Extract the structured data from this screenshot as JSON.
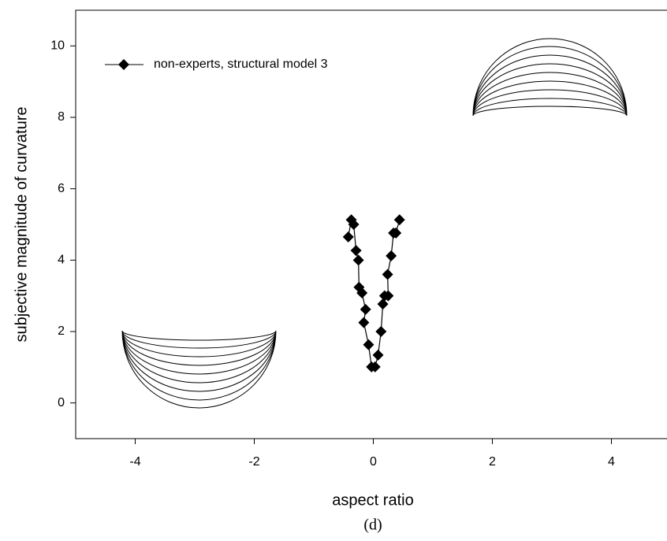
{
  "chart_data": {
    "type": "line",
    "x_label": "aspect ratio",
    "y_label": "subjective magnitude of curvature",
    "caption": "(d)",
    "xlim": [
      -5,
      5
    ],
    "ylim": [
      -1,
      11
    ],
    "xticks": [
      -4,
      -2,
      0,
      2,
      4
    ],
    "yticks": [
      0,
      2,
      4,
      6,
      8,
      10
    ],
    "series": [
      {
        "name": "non-experts, structural model 3",
        "color": "#000000",
        "x": [
          -0.42,
          -0.37,
          -0.33,
          -0.29,
          -0.25,
          -0.24,
          -0.19,
          -0.13,
          -0.16,
          -0.08,
          -0.03,
          0.03,
          0.08,
          0.13,
          0.16,
          0.19,
          0.25,
          0.24,
          0.3,
          0.34,
          0.38,
          0.44
        ],
        "values": [
          4.65,
          5.13,
          5.0,
          4.27,
          4.0,
          3.24,
          3.08,
          2.62,
          2.25,
          1.63,
          1.01,
          1.01,
          1.34,
          2.0,
          2.77,
          3.0,
          3.0,
          3.6,
          4.12,
          4.76,
          4.76,
          5.13
        ]
      }
    ],
    "legend": "upper left"
  }
}
